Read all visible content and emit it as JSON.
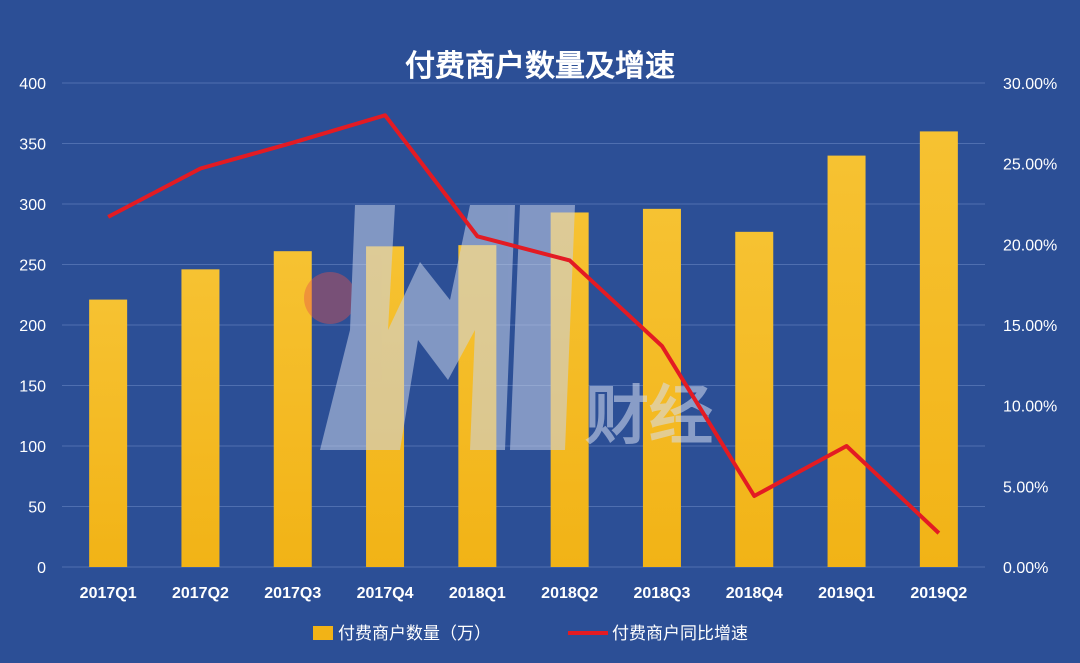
{
  "colors": {
    "background": "#2c4f96",
    "bar": "#f2b316",
    "bar_light": "#f6c232",
    "line": "#e31b23",
    "text": "#ffffff",
    "grid": "#4f6fb0"
  },
  "chart_data": {
    "type": "bar",
    "title": "付费商户数量及增速",
    "categories": [
      "2017Q1",
      "2017Q2",
      "2017Q3",
      "2017Q4",
      "2018Q1",
      "2018Q2",
      "2018Q3",
      "2018Q4",
      "2019Q1",
      "2019Q2"
    ],
    "series": [
      {
        "name": "付费商户数量（万）",
        "type": "bar",
        "axis": "left",
        "values": [
          221,
          246,
          261,
          265,
          266,
          293,
          296,
          277,
          340,
          360
        ]
      },
      {
        "name": "付费商户同比增速",
        "type": "line",
        "axis": "right",
        "values": [
          0.217,
          0.247,
          0.263,
          0.28,
          0.205,
          0.19,
          0.137,
          0.044,
          0.075,
          0.021
        ]
      }
    ],
    "ylim_left": [
      0,
      400
    ],
    "yticks_left": [
      "0",
      "50",
      "100",
      "150",
      "200",
      "250",
      "300",
      "350",
      "400"
    ],
    "ylim_right": [
      0,
      0.3
    ],
    "yticks_right": [
      "0.00%",
      "5.00%",
      "10.00%",
      "15.00%",
      "20.00%",
      "25.00%",
      "30.00%"
    ],
    "grid": true,
    "legend_position": "bottom"
  },
  "watermark": {
    "text": "财经"
  }
}
